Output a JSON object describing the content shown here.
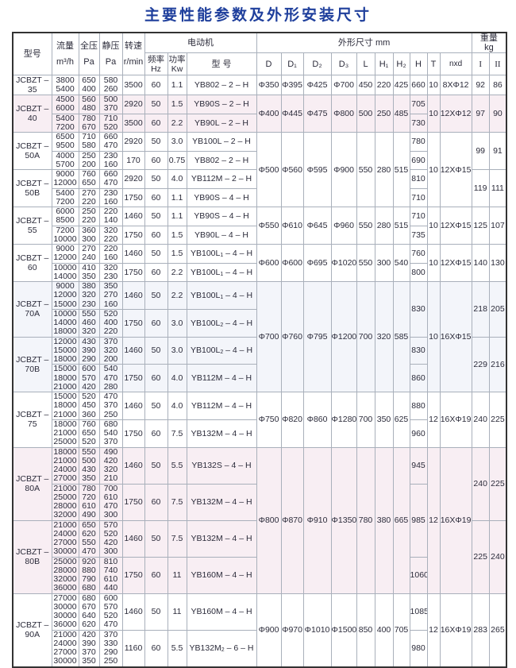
{
  "title": "主要性能参数及外形安装尺寸",
  "header": {
    "model": "型号",
    "flow": "流量",
    "flow_unit": "m³/h",
    "total_pressure": "全压",
    "total_pressure_unit": "Pa",
    "static_pressure": "静压",
    "static_pressure_unit": "Pa",
    "speed": "转速",
    "speed_unit": "r/min",
    "motor": "电动机",
    "frequency": "频率",
    "frequency_unit": "Hz",
    "power": "功率",
    "power_unit": "Kw",
    "motor_model": "型 号",
    "dimensions": "外形尺寸  mm",
    "dim_cols": [
      "D",
      "D₁",
      "D₂",
      "D₃",
      "L",
      "H₁",
      "H₂",
      "H",
      "T",
      "nxd"
    ],
    "weight": "重量",
    "weight_unit": "kg",
    "weight_cols": [
      "I",
      "II"
    ]
  },
  "colors": {
    "title": "#1f3f9c",
    "pink_band": "#f8eef3",
    "blue_band": "#f3f5fa"
  },
  "groups": [
    {
      "band": "",
      "dims": [
        "Φ350",
        "Φ395",
        "Φ425",
        "Φ700",
        "450",
        "220",
        "425"
      ],
      "T": "10",
      "nxd": "8XΦ12",
      "H": [
        {
          "v": "660",
          "span": 1
        }
      ],
      "models": [
        {
          "name": "JCBZT – 35",
          "weights": [
            "92",
            "86"
          ],
          "rows": [
            {
              "flow": [
                "3800",
                "5400"
              ],
              "total": [
                "650",
                "400"
              ],
              "static": [
                "580",
                "260"
              ],
              "speed": "3500",
              "hz": "60",
              "kw": "1.1",
              "motor": "YB802 – 2 – H"
            }
          ]
        }
      ]
    },
    {
      "band": "pink",
      "dims": [
        "Φ400",
        "Φ445",
        "Φ475",
        "Φ800",
        "500",
        "250",
        "485"
      ],
      "T": "10",
      "nxd": "12XΦ12",
      "H": [
        {
          "v": "705",
          "span": 1
        },
        {
          "v": "730",
          "span": 1
        }
      ],
      "models": [
        {
          "name": "JCBZT – 40",
          "weights": [
            "97",
            "90"
          ],
          "rows": [
            {
              "flow": [
                "4500",
                "6000"
              ],
              "total": [
                "560",
                "480"
              ],
              "static": [
                "500",
                "370"
              ],
              "speed": "2920",
              "hz": "50",
              "kw": "1.5",
              "motor": "YB90S – 2 – H"
            },
            {
              "flow": [
                "5400",
                "7200"
              ],
              "total": [
                "780",
                "670"
              ],
              "static": [
                "710",
                "520"
              ],
              "speed": "3500",
              "hz": "60",
              "kw": "2.2",
              "motor": "YB90L – 2 – H"
            }
          ]
        }
      ]
    },
    {
      "band": "",
      "dims": [
        "Φ500",
        "Φ560",
        "Φ595",
        "Φ900",
        "550",
        "280",
        "515"
      ],
      "T": "10",
      "nxd": "12XΦ15",
      "H": [
        {
          "v": "780",
          "span": 1
        },
        {
          "v": "690",
          "span": 1
        },
        {
          "v": "810",
          "span": 1
        },
        {
          "v": "710",
          "span": 1
        }
      ],
      "models": [
        {
          "name": "JCBZT – 50A",
          "weights": [
            "99",
            "91"
          ],
          "rows": [
            {
              "flow": [
                "6500",
                "9500"
              ],
              "total": [
                "710",
                "580"
              ],
              "static": [
                "660",
                "470"
              ],
              "speed": "2920",
              "hz": "50",
              "kw": "3.0",
              "motor": "YB100L – 2 – H"
            },
            {
              "flow": [
                "4000",
                "5700"
              ],
              "total": [
                "250",
                "200"
              ],
              "static": [
                "230",
                "160"
              ],
              "speed": "170",
              "hz": "60",
              "kw": "0.75",
              "motor": "YB802 – 2 – H"
            }
          ]
        },
        {
          "name": "JCBZT – 50B",
          "weights": [
            "119",
            "111"
          ],
          "rows": [
            {
              "flow": [
                "9000",
                "12000"
              ],
              "total": [
                "760",
                "650"
              ],
              "static": [
                "660",
                "470"
              ],
              "speed": "2920",
              "hz": "50",
              "kw": "4.0",
              "motor": "YB112M – 2 – H"
            },
            {
              "flow": [
                "5400",
                "7200"
              ],
              "total": [
                "270",
                "220"
              ],
              "static": [
                "230",
                "160"
              ],
              "speed": "1750",
              "hz": "60",
              "kw": "1.1",
              "motor": "YB90S – 4 – H"
            }
          ]
        }
      ]
    },
    {
      "band": "",
      "dims": [
        "Φ550",
        "Φ610",
        "Φ645",
        "Φ960",
        "550",
        "280",
        "515"
      ],
      "T": "10",
      "nxd": "12XΦ15",
      "H": [
        {
          "v": "710",
          "span": 1
        },
        {
          "v": "735",
          "span": 1
        }
      ],
      "models": [
        {
          "name": "JCBZT – 55",
          "weights": [
            "125",
            "107"
          ],
          "rows": [
            {
              "flow": [
                "6000",
                "8500"
              ],
              "total": [
                "250",
                "220"
              ],
              "static": [
                "220",
                "140"
              ],
              "speed": "1460",
              "hz": "50",
              "kw": "1.1",
              "motor": "YB90S – 4 – H"
            },
            {
              "flow": [
                "7200",
                "10000"
              ],
              "total": [
                "360",
                "300"
              ],
              "static": [
                "320",
                "220"
              ],
              "speed": "1750",
              "hz": "60",
              "kw": "1.5",
              "motor": "YB90L – 4 – H"
            }
          ]
        }
      ]
    },
    {
      "band": "",
      "dims": [
        "Φ600",
        "Φ600",
        "Φ695",
        "Φ1020",
        "550",
        "300",
        "540"
      ],
      "T": "10",
      "nxd": "12XΦ15",
      "H": [
        {
          "v": "760",
          "span": 1
        },
        {
          "v": "800",
          "span": 1
        }
      ],
      "models": [
        {
          "name": "JCBZT – 60",
          "weights": [
            "140",
            "130"
          ],
          "rows": [
            {
              "flow": [
                "9000",
                "12000"
              ],
              "total": [
                "270",
                "240"
              ],
              "static": [
                "220",
                "160"
              ],
              "speed": "1460",
              "hz": "50",
              "kw": "1.5",
              "motor": "YB100L₁ – 4 – H"
            },
            {
              "flow": [
                "10000",
                "14000"
              ],
              "total": [
                "410",
                "350"
              ],
              "static": [
                "320",
                "230"
              ],
              "speed": "1750",
              "hz": "60",
              "kw": "2.2",
              "motor": "YB100L₁ – 4 – H"
            }
          ]
        }
      ]
    },
    {
      "band": "blue",
      "dims": [
        "Φ700",
        "Φ760",
        "Φ795",
        "Φ1200",
        "700",
        "320",
        "585"
      ],
      "T": "10",
      "nxd": "16XΦ15",
      "H": [
        {
          "v": "830",
          "span": 2
        },
        {
          "v": "830",
          "span": 1
        },
        {
          "v": "860",
          "span": 1
        }
      ],
      "models": [
        {
          "name": "JCBZT – 70A",
          "weights": [
            "218",
            "205"
          ],
          "rows": [
            {
              "flow": [
                "9000",
                "12000",
                "15000"
              ],
              "total": [
                "380",
                "320",
                "230"
              ],
              "static": [
                "350",
                "270",
                "160"
              ],
              "speed": "1460",
              "hz": "50",
              "kw": "2.2",
              "motor": "YB100L₁ – 4 – H"
            },
            {
              "flow": [
                "10000",
                "14000",
                "18000"
              ],
              "total": [
                "550",
                "460",
                "320"
              ],
              "static": [
                "520",
                "400",
                "220"
              ],
              "speed": "1750",
              "hz": "60",
              "kw": "3.0",
              "motor": "YB100L₂ – 4 – H"
            }
          ]
        },
        {
          "name": "JCBZT – 70B",
          "weights": [
            "229",
            "216"
          ],
          "rows": [
            {
              "flow": [
                "12000",
                "15000",
                "18000"
              ],
              "total": [
                "430",
                "390",
                "290"
              ],
              "static": [
                "370",
                "320",
                "200"
              ],
              "speed": "1460",
              "hz": "50",
              "kw": "3.0",
              "motor": "YB100L₂ – 4 – H"
            },
            {
              "flow": [
                "15000",
                "18000",
                "21000"
              ],
              "total": [
                "600",
                "570",
                "420"
              ],
              "static": [
                "540",
                "470",
                "280"
              ],
              "speed": "1750",
              "hz": "60",
              "kw": "4.0",
              "motor": "YB112M – 4 – H"
            }
          ]
        }
      ]
    },
    {
      "band": "",
      "dims": [
        "Φ750",
        "Φ820",
        "Φ860",
        "Φ1280",
        "700",
        "350",
        "625"
      ],
      "T": "12",
      "nxd": "16XΦ19",
      "H": [
        {
          "v": "880",
          "span": 1
        },
        {
          "v": "960",
          "span": 1
        }
      ],
      "models": [
        {
          "name": "JCBZT – 75",
          "weights": [
            "240",
            "225"
          ],
          "rows": [
            {
              "flow": [
                "15000",
                "18000",
                "21000"
              ],
              "total": [
                "520",
                "450",
                "360"
              ],
              "static": [
                "470",
                "370",
                "250"
              ],
              "speed": "1460",
              "hz": "50",
              "kw": "4.0",
              "motor": "YB112M – 4 – H"
            },
            {
              "flow": [
                "18000",
                "21000",
                "25000"
              ],
              "total": [
                "760",
                "650",
                "520"
              ],
              "static": [
                "680",
                "540",
                "370"
              ],
              "speed": "1750",
              "hz": "60",
              "kw": "7.5",
              "motor": "YB132M – 4 – H"
            }
          ]
        }
      ]
    },
    {
      "band": "pink",
      "dims": [
        "Φ800",
        "Φ870",
        "Φ910",
        "Φ1350",
        "780",
        "380",
        "665"
      ],
      "T": "12",
      "nxd": "16XΦ19",
      "H": [
        {
          "v": "945",
          "span": 1
        },
        {
          "v": "985",
          "span": 2
        },
        {
          "v": "1060",
          "span": 1
        }
      ],
      "models": [
        {
          "name": "JCBZT – 80A",
          "weights": [
            "240",
            "225"
          ],
          "rows": [
            {
              "flow": [
                "18000",
                "21000",
                "24000",
                "27000"
              ],
              "total": [
                "550",
                "500",
                "430",
                "350"
              ],
              "static": [
                "490",
                "420",
                "320",
                "210"
              ],
              "speed": "1460",
              "hz": "50",
              "kw": "5.5",
              "motor": "YB132S – 4 – H"
            },
            {
              "flow": [
                "21000",
                "25000",
                "28000",
                "32000"
              ],
              "total": [
                "780",
                "720",
                "610",
                "490"
              ],
              "static": [
                "700",
                "610",
                "470",
                "300"
              ],
              "speed": "1750",
              "hz": "60",
              "kw": "7.5",
              "motor": "YB132M – 4 – H"
            }
          ]
        },
        {
          "name": "JCBZT – 80B",
          "weights": [
            "225",
            "240"
          ],
          "rows": [
            {
              "flow": [
                "21000",
                "24000",
                "27000",
                "30000"
              ],
              "total": [
                "650",
                "620",
                "550",
                "470"
              ],
              "static": [
                "570",
                "520",
                "420",
                "300"
              ],
              "speed": "1460",
              "hz": "50",
              "kw": "7.5",
              "motor": "YB132M – 4 – H"
            },
            {
              "flow": [
                "25000",
                "28000",
                "32000",
                "36000"
              ],
              "total": [
                "920",
                "880",
                "790",
                "680"
              ],
              "static": [
                "810",
                "740",
                "610",
                "440"
              ],
              "speed": "1750",
              "hz": "60",
              "kw": "11",
              "motor": "YB160M – 4 – H"
            }
          ]
        }
      ]
    },
    {
      "band": "",
      "dims": [
        "Φ900",
        "Φ970",
        "Φ1010",
        "Φ1500",
        "850",
        "400",
        "705"
      ],
      "T": "12",
      "nxd": "16XΦ19",
      "H": [
        {
          "v": "1085",
          "span": 1
        },
        {
          "v": "980",
          "span": 1
        }
      ],
      "models": [
        {
          "name": "JCBZT – 90A",
          "weights": [
            "283",
            "265"
          ],
          "rows": [
            {
              "flow": [
                "27000",
                "30000",
                "30000",
                "36000"
              ],
              "total": [
                "680",
                "670",
                "640",
                "620"
              ],
              "static": [
                "600",
                "570",
                "520",
                "470"
              ],
              "speed": "1460",
              "hz": "50",
              "kw": "11",
              "motor": "YB160M – 4 – H"
            },
            {
              "flow": [
                "21000",
                "24000",
                "27000",
                "30000"
              ],
              "total": [
                "420",
                "390",
                "370",
                "350"
              ],
              "static": [
                "370",
                "330",
                "290",
                "250"
              ],
              "speed": "1160",
              "hz": "60",
              "kw": "5.5",
              "motor": "YB132M₂ – 6 – H"
            }
          ]
        }
      ]
    }
  ]
}
